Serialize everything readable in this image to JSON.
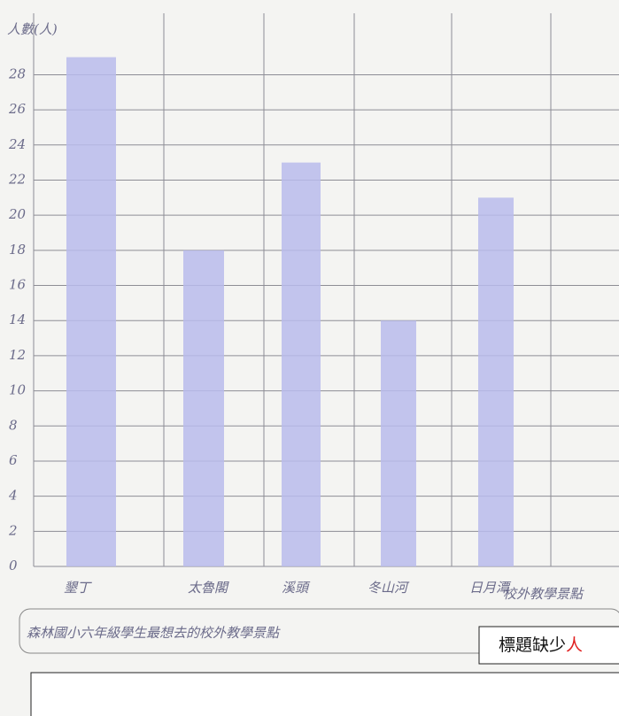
{
  "chart_data": {
    "type": "bar",
    "title": "森林國小六年級學生最想去的校外教學景點",
    "y_label": "人數(人)",
    "x_label": "校外教學景點",
    "categories": [
      "墾丁",
      "太魯閣",
      "溪頭",
      "冬山河",
      "日月潭"
    ],
    "values": [
      29,
      18,
      23,
      14,
      21
    ],
    "color": "#b9bbec",
    "ylim": [
      0,
      31.5
    ],
    "yticks": [
      0,
      2,
      4,
      6,
      8,
      10,
      12,
      14,
      16,
      18,
      20,
      22,
      24,
      26,
      28
    ],
    "grid": true
  },
  "annotation": {
    "text": "標題缺少",
    "emphasis": "人"
  }
}
